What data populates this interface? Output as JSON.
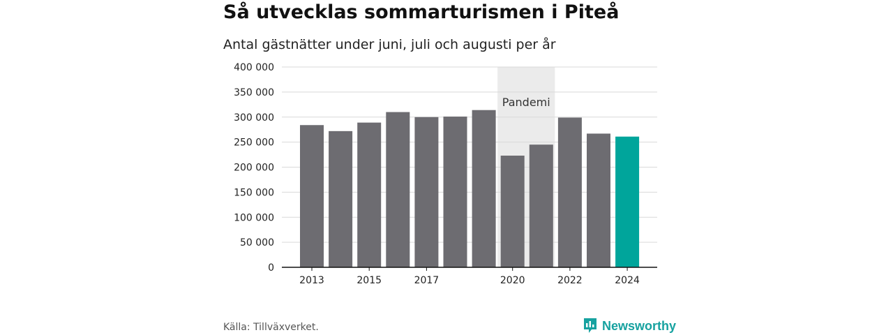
{
  "title": "Så utvecklas sommarturismen i Piteå",
  "subtitle": "Antal gästnätter under juni, juli och augusti per år",
  "source": "Källa: Tillväxverket.",
  "brand": "Newsworthy",
  "colors": {
    "bar": "#6d6c71",
    "highlight": "#00a59b",
    "band": "#ebebeb",
    "grid": "#d9d9d9",
    "brand": "#17a2a0"
  },
  "chart_data": {
    "type": "bar",
    "categories": [
      "2013",
      "2014",
      "2015",
      "2016",
      "2017",
      "2018",
      "2019",
      "2020",
      "2021",
      "2022",
      "2023",
      "2024"
    ],
    "values": [
      284000,
      272000,
      289000,
      310000,
      300000,
      301000,
      314000,
      223000,
      245000,
      299000,
      267000,
      261000
    ],
    "x_tick_labels": [
      "2013",
      "2015",
      "2017",
      "2020",
      "2022",
      "2024"
    ],
    "y_ticks": [
      0,
      50000,
      100000,
      150000,
      200000,
      250000,
      300000,
      350000,
      400000
    ],
    "y_tick_labels": [
      "0",
      "50 000",
      "100 000",
      "150 000",
      "200 000",
      "250 000",
      "300 000",
      "350 000",
      "400 000"
    ],
    "ylim": [
      0,
      400000
    ],
    "highlight_category": "2024",
    "annotation": {
      "label": "Pandemi",
      "from": "2020",
      "to": "2021"
    },
    "grid": true
  }
}
